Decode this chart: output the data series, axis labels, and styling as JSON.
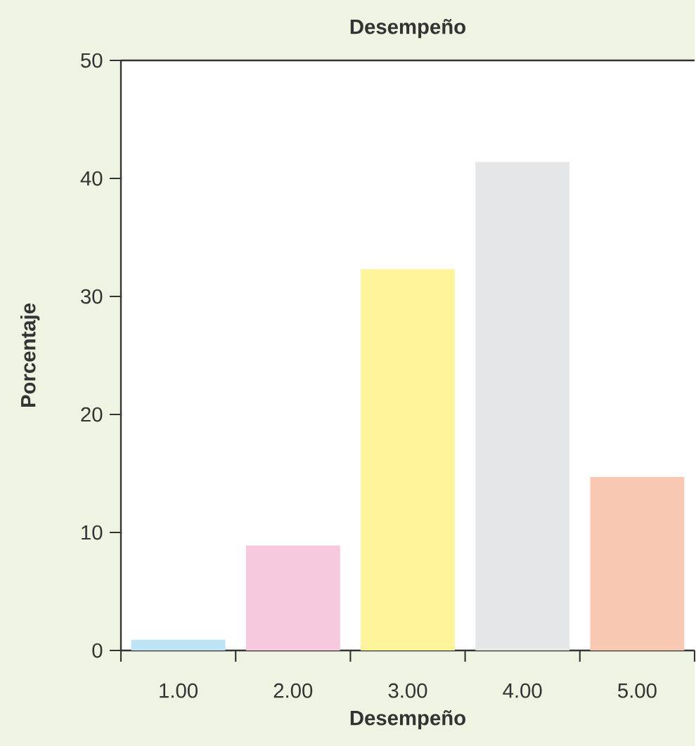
{
  "chart_data": {
    "type": "bar",
    "title": "Desempeño",
    "xlabel": "Desempeño",
    "ylabel": "Porcentaje",
    "categories": [
      "1.00",
      "2.00",
      "3.00",
      "4.00",
      "5.00"
    ],
    "values": [
      0.9,
      8.9,
      32.3,
      41.4,
      14.7
    ],
    "colors": [
      "#bde3f5",
      "#f6c9df",
      "#fef59b",
      "#e5e6e8",
      "#f9c8b2"
    ],
    "ylim": [
      0,
      50
    ],
    "yticks": [
      0,
      10,
      20,
      30,
      40,
      50
    ],
    "grid": false
  }
}
